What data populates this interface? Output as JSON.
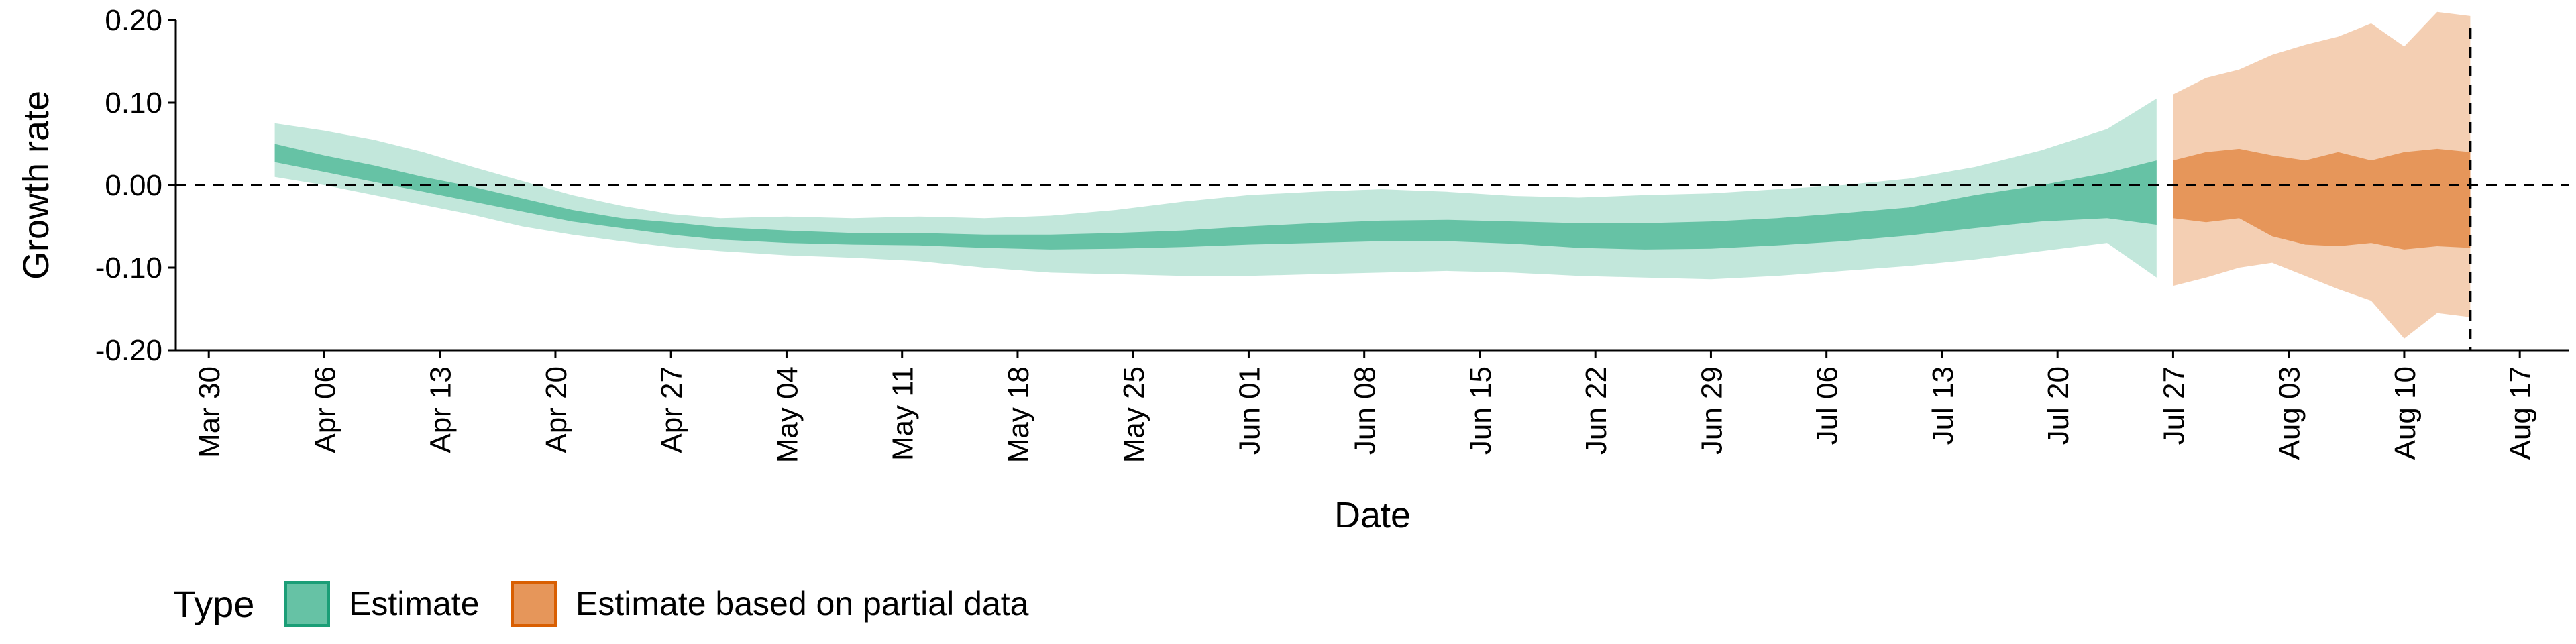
{
  "chart_data": {
    "type": "area",
    "xlabel": "Date",
    "ylabel": "Growth rate",
    "xlim": [
      "2020-03-28",
      "2020-08-20"
    ],
    "ylim": [
      -0.2,
      0.2
    ],
    "xticks": [
      "2020-03-30",
      "2020-04-06",
      "2020-04-13",
      "2020-04-20",
      "2020-04-27",
      "2020-05-04",
      "2020-05-11",
      "2020-05-18",
      "2020-05-25",
      "2020-06-01",
      "2020-06-08",
      "2020-06-15",
      "2020-06-22",
      "2020-06-29",
      "2020-07-06",
      "2020-07-13",
      "2020-07-20",
      "2020-07-27",
      "2020-08-03",
      "2020-08-10",
      "2020-08-17"
    ],
    "xtick_labels": [
      "Mar 30",
      "Apr 06",
      "Apr 13",
      "Apr 20",
      "Apr 27",
      "May 04",
      "May 11",
      "May 18",
      "May 25",
      "Jun 01",
      "Jun 08",
      "Jun 15",
      "Jun 22",
      "Jun 29",
      "Jul 06",
      "Jul 13",
      "Jul 20",
      "Jul 27",
      "Aug 03",
      "Aug 10",
      "Aug 17"
    ],
    "yticks": [
      -0.2,
      -0.1,
      0.0,
      0.1,
      0.2
    ],
    "ytick_labels": [
      "-0.20",
      "-0.10",
      "0.00",
      "0.10",
      "0.20"
    ],
    "hline_y": 0.0,
    "vline_x": "2020-08-14",
    "grid": false,
    "legend": {
      "title": "Type",
      "position": "bottom-left",
      "entries": [
        {
          "label": "Estimate",
          "fill": "#66c2a5",
          "border": "#1b9e77"
        },
        {
          "label": "Estimate based on partial data",
          "fill": "#e6965a",
          "border": "#d95f02"
        }
      ]
    },
    "series": [
      {
        "name": "Estimate",
        "inner_color": "#66c2a5",
        "outer_color": "#66c2a5",
        "points": [
          {
            "x": "2020-04-03",
            "lo90": 0.01,
            "lo50": 0.028,
            "hi50": 0.05,
            "hi90": 0.075
          },
          {
            "x": "2020-04-06",
            "lo90": 0.0,
            "lo50": 0.016,
            "hi50": 0.036,
            "hi90": 0.066
          },
          {
            "x": "2020-04-09",
            "lo90": -0.012,
            "lo50": 0.004,
            "hi50": 0.024,
            "hi90": 0.055
          },
          {
            "x": "2020-04-12",
            "lo90": -0.024,
            "lo50": -0.008,
            "hi50": 0.01,
            "hi90": 0.04
          },
          {
            "x": "2020-04-15",
            "lo90": -0.036,
            "lo50": -0.02,
            "hi50": -0.002,
            "hi90": 0.022
          },
          {
            "x": "2020-04-18",
            "lo90": -0.05,
            "lo50": -0.032,
            "hi50": -0.016,
            "hi90": 0.005
          },
          {
            "x": "2020-04-21",
            "lo90": -0.06,
            "lo50": -0.044,
            "hi50": -0.03,
            "hi90": -0.012
          },
          {
            "x": "2020-04-24",
            "lo90": -0.068,
            "lo50": -0.052,
            "hi50": -0.04,
            "hi90": -0.025
          },
          {
            "x": "2020-04-27",
            "lo90": -0.075,
            "lo50": -0.06,
            "hi50": -0.045,
            "hi90": -0.035
          },
          {
            "x": "2020-04-30",
            "lo90": -0.08,
            "lo50": -0.066,
            "hi50": -0.051,
            "hi90": -0.04
          },
          {
            "x": "2020-05-04",
            "lo90": -0.085,
            "lo50": -0.07,
            "hi50": -0.055,
            "hi90": -0.038
          },
          {
            "x": "2020-05-08",
            "lo90": -0.088,
            "lo50": -0.072,
            "hi50": -0.058,
            "hi90": -0.04
          },
          {
            "x": "2020-05-12",
            "lo90": -0.092,
            "lo50": -0.073,
            "hi50": -0.058,
            "hi90": -0.038
          },
          {
            "x": "2020-05-16",
            "lo90": -0.1,
            "lo50": -0.076,
            "hi50": -0.06,
            "hi90": -0.04
          },
          {
            "x": "2020-05-20",
            "lo90": -0.106,
            "lo50": -0.078,
            "hi50": -0.06,
            "hi90": -0.037
          },
          {
            "x": "2020-05-24",
            "lo90": -0.108,
            "lo50": -0.077,
            "hi50": -0.058,
            "hi90": -0.03
          },
          {
            "x": "2020-05-28",
            "lo90": -0.11,
            "lo50": -0.075,
            "hi50": -0.055,
            "hi90": -0.02
          },
          {
            "x": "2020-06-01",
            "lo90": -0.11,
            "lo50": -0.072,
            "hi50": -0.05,
            "hi90": -0.012
          },
          {
            "x": "2020-06-05",
            "lo90": -0.108,
            "lo50": -0.07,
            "hi50": -0.046,
            "hi90": -0.008
          },
          {
            "x": "2020-06-09",
            "lo90": -0.106,
            "lo50": -0.068,
            "hi50": -0.043,
            "hi90": -0.005
          },
          {
            "x": "2020-06-13",
            "lo90": -0.104,
            "lo50": -0.068,
            "hi50": -0.042,
            "hi90": -0.008
          },
          {
            "x": "2020-06-17",
            "lo90": -0.106,
            "lo50": -0.071,
            "hi50": -0.044,
            "hi90": -0.013
          },
          {
            "x": "2020-06-21",
            "lo90": -0.11,
            "lo50": -0.076,
            "hi50": -0.046,
            "hi90": -0.015
          },
          {
            "x": "2020-06-25",
            "lo90": -0.112,
            "lo50": -0.078,
            "hi50": -0.046,
            "hi90": -0.012
          },
          {
            "x": "2020-06-29",
            "lo90": -0.114,
            "lo50": -0.077,
            "hi50": -0.044,
            "hi90": -0.01
          },
          {
            "x": "2020-07-03",
            "lo90": -0.11,
            "lo50": -0.073,
            "hi50": -0.04,
            "hi90": -0.005
          },
          {
            "x": "2020-07-07",
            "lo90": -0.104,
            "lo50": -0.068,
            "hi50": -0.034,
            "hi90": 0.0
          },
          {
            "x": "2020-07-11",
            "lo90": -0.098,
            "lo50": -0.061,
            "hi50": -0.027,
            "hi90": 0.008
          },
          {
            "x": "2020-07-15",
            "lo90": -0.09,
            "lo50": -0.052,
            "hi50": -0.012,
            "hi90": 0.022
          },
          {
            "x": "2020-07-19",
            "lo90": -0.08,
            "lo50": -0.044,
            "hi50": 0.0,
            "hi90": 0.042
          },
          {
            "x": "2020-07-23",
            "lo90": -0.07,
            "lo50": -0.04,
            "hi50": 0.015,
            "hi90": 0.068
          },
          {
            "x": "2020-07-26",
            "lo90": -0.112,
            "lo50": -0.048,
            "hi50": 0.03,
            "hi90": 0.105
          }
        ]
      },
      {
        "name": "Estimate based on partial data",
        "inner_color": "#e6965a",
        "outer_color": "#f4cfb3",
        "points": [
          {
            "x": "2020-07-27",
            "lo90": -0.122,
            "lo50": -0.04,
            "hi50": 0.03,
            "hi90": 0.11
          },
          {
            "x": "2020-07-29",
            "lo90": -0.112,
            "lo50": -0.045,
            "hi50": 0.04,
            "hi90": 0.13
          },
          {
            "x": "2020-07-31",
            "lo90": -0.1,
            "lo50": -0.04,
            "hi50": 0.044,
            "hi90": 0.14
          },
          {
            "x": "2020-08-02",
            "lo90": -0.094,
            "lo50": -0.062,
            "hi50": 0.036,
            "hi90": 0.158
          },
          {
            "x": "2020-08-04",
            "lo90": -0.11,
            "lo50": -0.072,
            "hi50": 0.03,
            "hi90": 0.17
          },
          {
            "x": "2020-08-06",
            "lo90": -0.126,
            "lo50": -0.074,
            "hi50": 0.04,
            "hi90": 0.18
          },
          {
            "x": "2020-08-08",
            "lo90": -0.14,
            "lo50": -0.07,
            "hi50": 0.03,
            "hi90": 0.196
          },
          {
            "x": "2020-08-10",
            "lo90": -0.186,
            "lo50": -0.078,
            "hi50": 0.04,
            "hi90": 0.168
          },
          {
            "x": "2020-08-12",
            "lo90": -0.155,
            "lo50": -0.074,
            "hi50": 0.044,
            "hi90": 0.21
          },
          {
            "x": "2020-08-14",
            "lo90": -0.16,
            "lo50": -0.076,
            "hi50": 0.04,
            "hi90": 0.205
          }
        ]
      }
    ]
  }
}
